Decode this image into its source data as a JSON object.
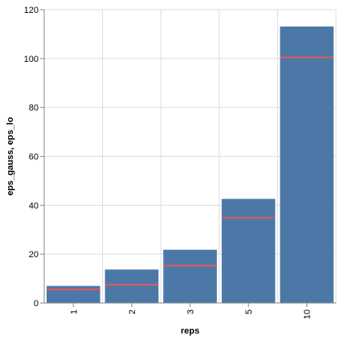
{
  "chart_data": {
    "type": "bar",
    "categories": [
      "1",
      "2",
      "3",
      "5",
      "10"
    ],
    "series": [
      {
        "name": "eps_gauss",
        "values": [
          7.0,
          13.7,
          21.8,
          42.6,
          113.1
        ],
        "color": "#4c78a8"
      },
      {
        "name": "eps_lo",
        "values": [
          5.6,
          7.5,
          15.3,
          34.9,
          100.5
        ],
        "color": "#e45756",
        "mark": "tick"
      }
    ],
    "xlabel": "reps",
    "ylabel": "eps_gauss, eps_lo",
    "ylim": [
      0,
      120
    ],
    "yticks": [
      0,
      20,
      40,
      60,
      80,
      100,
      120
    ],
    "grid": true,
    "legend": "none"
  }
}
